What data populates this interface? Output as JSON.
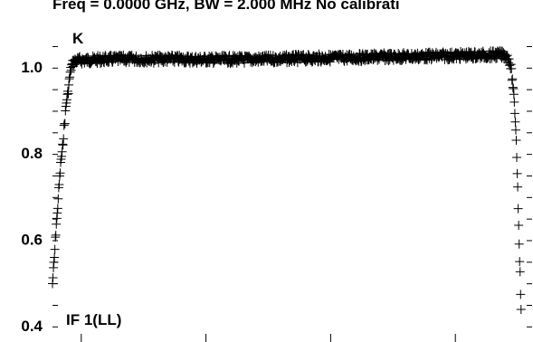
{
  "chart_data": {
    "type": "scatter",
    "title": "Freq = 0.0000 GHz, BW = 2.000 MHz  No calibrati",
    "xlabel": "",
    "ylabel": "",
    "ylim": [
      0.365,
      1.095
    ],
    "xlim": [
      0,
      1
    ],
    "y_ticks": [
      0.4,
      0.6,
      0.8,
      1.0
    ],
    "y_tick_labels": [
      "0.4",
      "0.6",
      "0.8",
      "1.0"
    ],
    "x_tick_positions": [
      0.06,
      0.32,
      0.58,
      0.84
    ],
    "annotations": [
      "IF 1(LL)",
      "K"
    ],
    "marker": "+",
    "color": "#000000",
    "grid": false,
    "series": [
      {
        "points": [
          [
            0.0,
            0.5
          ],
          [
            0.002,
            0.53
          ],
          [
            0.004,
            0.56
          ],
          [
            0.006,
            0.6
          ],
          [
            0.008,
            0.64
          ],
          [
            0.01,
            0.66
          ],
          [
            0.012,
            0.7
          ],
          [
            0.014,
            0.73
          ],
          [
            0.016,
            0.76
          ],
          [
            0.018,
            0.79
          ],
          [
            0.02,
            0.8
          ],
          [
            0.022,
            0.83
          ],
          [
            0.024,
            0.86
          ],
          [
            0.026,
            0.88
          ],
          [
            0.028,
            0.91
          ],
          [
            0.03,
            0.93
          ],
          [
            0.032,
            0.94
          ],
          [
            0.034,
            0.96
          ],
          [
            0.036,
            0.98
          ],
          [
            0.038,
            0.995
          ],
          [
            0.04,
            1.005
          ],
          [
            0.042,
            1.01
          ],
          [
            0.045,
            1.015
          ],
          [
            0.05,
            1.017
          ],
          [
            0.06,
            1.018
          ],
          [
            0.08,
            1.019
          ],
          [
            0.1,
            1.02
          ],
          [
            0.15,
            1.021
          ],
          [
            0.2,
            1.021
          ],
          [
            0.25,
            1.021
          ],
          [
            0.3,
            1.02
          ],
          [
            0.35,
            1.02
          ],
          [
            0.4,
            1.02
          ],
          [
            0.45,
            1.021
          ],
          [
            0.5,
            1.022
          ],
          [
            0.55,
            1.023
          ],
          [
            0.6,
            1.024
          ],
          [
            0.65,
            1.025
          ],
          [
            0.7,
            1.026
          ],
          [
            0.75,
            1.027
          ],
          [
            0.8,
            1.028
          ],
          [
            0.85,
            1.029
          ],
          [
            0.9,
            1.03
          ],
          [
            0.93,
            1.031
          ],
          [
            0.945,
            1.03
          ],
          [
            0.952,
            1.02
          ],
          [
            0.956,
            1.0
          ],
          [
            0.96,
            0.96
          ],
          [
            0.964,
            0.9
          ],
          [
            0.966,
            0.86
          ],
          [
            0.968,
            0.8
          ],
          [
            0.97,
            0.72
          ],
          [
            0.972,
            0.64
          ],
          [
            0.974,
            0.56
          ],
          [
            0.976,
            0.48
          ],
          [
            0.978,
            0.41
          ]
        ]
      }
    ]
  }
}
